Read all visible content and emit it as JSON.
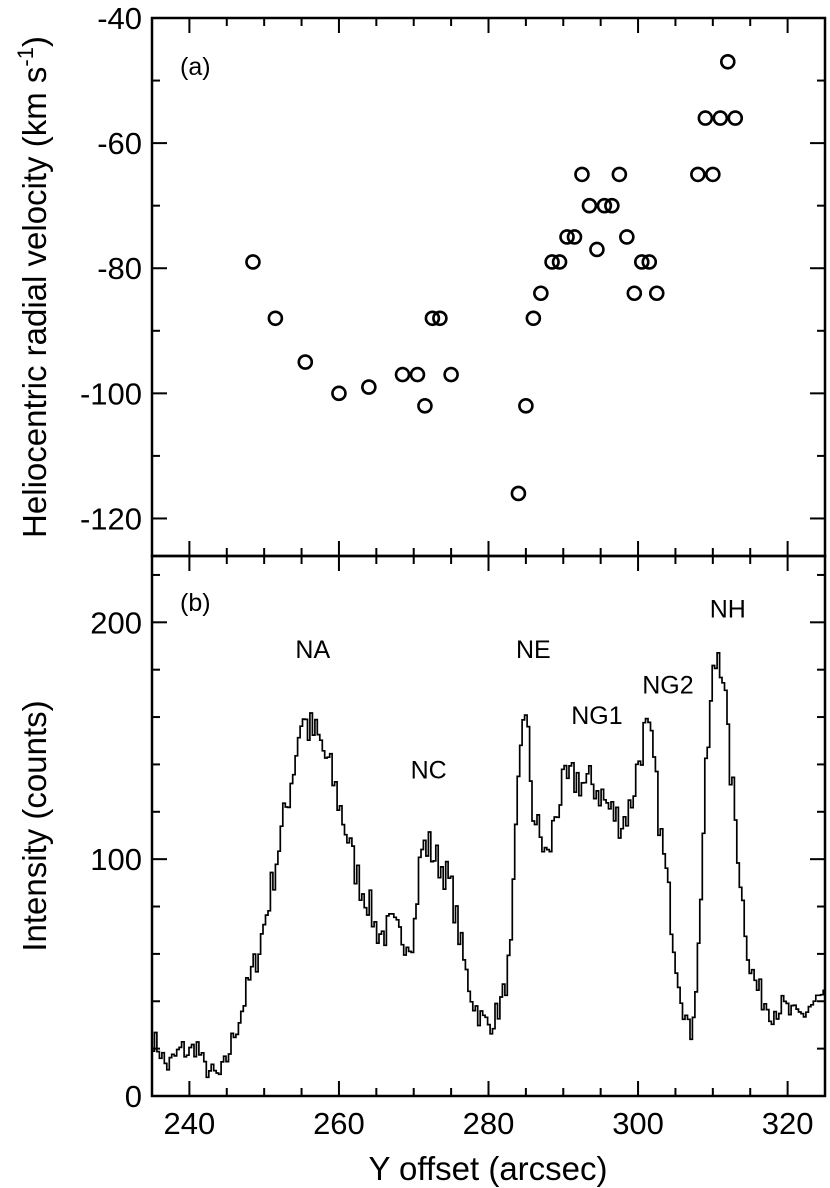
{
  "chart_data": [
    {
      "type": "scatter",
      "panel_label": "(a)",
      "ylabel": "Heliocentric radial velocity (km s",
      "ylabel_sup": "-1",
      "ylabel_close": ")",
      "xlim": [
        235,
        325
      ],
      "ylim": [
        -126,
        -40
      ],
      "yticks": [
        -40,
        -60,
        -80,
        -100,
        -120
      ],
      "grid": false,
      "marker": "open-circle",
      "series": [
        {
          "points": [
            [
              248.5,
              -79
            ],
            [
              251.5,
              -88
            ],
            [
              255.5,
              -95
            ],
            [
              260,
              -100
            ],
            [
              264,
              -99
            ],
            [
              268.5,
              -97
            ],
            [
              270.5,
              -97
            ],
            [
              271.5,
              -102
            ],
            [
              272.5,
              -88
            ],
            [
              273.5,
              -88
            ],
            [
              275,
              -97
            ],
            [
              284,
              -116
            ],
            [
              285,
              -102
            ],
            [
              286,
              -88
            ],
            [
              287,
              -84
            ],
            [
              288.5,
              -79
            ],
            [
              289.5,
              -79
            ],
            [
              290.5,
              -75
            ],
            [
              291.5,
              -75
            ],
            [
              292.5,
              -65
            ],
            [
              293.5,
              -70
            ],
            [
              294.5,
              -77
            ],
            [
              295.5,
              -70
            ],
            [
              296.5,
              -70
            ],
            [
              297.5,
              -65
            ],
            [
              298.5,
              -75
            ],
            [
              299.5,
              -84
            ],
            [
              300.5,
              -79
            ],
            [
              301.5,
              -79
            ],
            [
              302.5,
              -84
            ],
            [
              308,
              -65
            ],
            [
              309,
              -56
            ],
            [
              310,
              -65
            ],
            [
              311,
              -56
            ],
            [
              312,
              -47
            ],
            [
              313,
              -56
            ]
          ]
        }
      ]
    },
    {
      "type": "line",
      "panel_label": "(b)",
      "step": true,
      "xlabel": "Y offset (arcsec)",
      "ylabel": "Intensity (counts)",
      "xlim": [
        235,
        325
      ],
      "ylim": [
        0,
        228
      ],
      "xticks": [
        240,
        260,
        280,
        300,
        320
      ],
      "yticks": [
        0,
        100,
        200
      ],
      "grid": false,
      "annotations": [
        {
          "text": "NA",
          "x": 256.5,
          "y": 185
        },
        {
          "text": "NC",
          "x": 272,
          "y": 134
        },
        {
          "text": "NE",
          "x": 286,
          "y": 185
        },
        {
          "text": "NG1",
          "x": 294.5,
          "y": 157
        },
        {
          "text": "NG2",
          "x": 304,
          "y": 170
        },
        {
          "text": "NH",
          "x": 312,
          "y": 202
        }
      ],
      "series": [
        {
          "anchors": [
            [
              235,
              25
            ],
            [
              236,
              20
            ],
            [
              237,
              12
            ],
            [
              238,
              16
            ],
            [
              239,
              20
            ],
            [
              240,
              18
            ],
            [
              241,
              22
            ],
            [
              242,
              12
            ],
            [
              243,
              10
            ],
            [
              244,
              8
            ],
            [
              245,
              15
            ],
            [
              246,
              26
            ],
            [
              247,
              36
            ],
            [
              248,
              48
            ],
            [
              249,
              58
            ],
            [
              250,
              72
            ],
            [
              251,
              88
            ],
            [
              252,
              106
            ],
            [
              253,
              122
            ],
            [
              254,
              140
            ],
            [
              255,
              160
            ],
            [
              256,
              155
            ],
            [
              257,
              152
            ],
            [
              258,
              145
            ],
            [
              259,
              136
            ],
            [
              260,
              124
            ],
            [
              261,
              112
            ],
            [
              262,
              98
            ],
            [
              263,
              88
            ],
            [
              264,
              82
            ],
            [
              265,
              70
            ],
            [
              266,
              68
            ],
            [
              267,
              72
            ],
            [
              268,
              68
            ],
            [
              269,
              66
            ],
            [
              270,
              68
            ],
            [
              271,
              104
            ],
            [
              272,
              106
            ],
            [
              273,
              100
            ],
            [
              274,
              96
            ],
            [
              275,
              88
            ],
            [
              276,
              70
            ],
            [
              277,
              52
            ],
            [
              278,
              40
            ],
            [
              279,
              33
            ],
            [
              280,
              30
            ],
            [
              281,
              34
            ],
            [
              282,
              42
            ],
            [
              283,
              60
            ],
            [
              284,
              130
            ],
            [
              284.6,
              165
            ],
            [
              285.3,
              150
            ],
            [
              286,
              120
            ],
            [
              287,
              108
            ],
            [
              288,
              100
            ],
            [
              289,
              120
            ],
            [
              290,
              130
            ],
            [
              291,
              133
            ],
            [
              292,
              134
            ],
            [
              293,
              131
            ],
            [
              294,
              132
            ],
            [
              295,
              128
            ],
            [
              296,
              122
            ],
            [
              297,
              118
            ],
            [
              298,
              116
            ],
            [
              299,
              122
            ],
            [
              300,
              140
            ],
            [
              301,
              155
            ],
            [
              302,
              145
            ],
            [
              303,
              112
            ],
            [
              304,
              88
            ],
            [
              305,
              60
            ],
            [
              306,
              40
            ],
            [
              307,
              24
            ],
            [
              308,
              55
            ],
            [
              309,
              130
            ],
            [
              310,
              175
            ],
            [
              310.8,
              190
            ],
            [
              311.5,
              178
            ],
            [
              312,
              150
            ],
            [
              313,
              118
            ],
            [
              314,
              82
            ],
            [
              315,
              55
            ],
            [
              316,
              45
            ],
            [
              317,
              40
            ],
            [
              318,
              36
            ],
            [
              319,
              38
            ],
            [
              320,
              36
            ],
            [
              321,
              33
            ],
            [
              322,
              34
            ],
            [
              323,
              38
            ],
            [
              324,
              40
            ],
            [
              325,
              42
            ]
          ]
        }
      ]
    }
  ]
}
